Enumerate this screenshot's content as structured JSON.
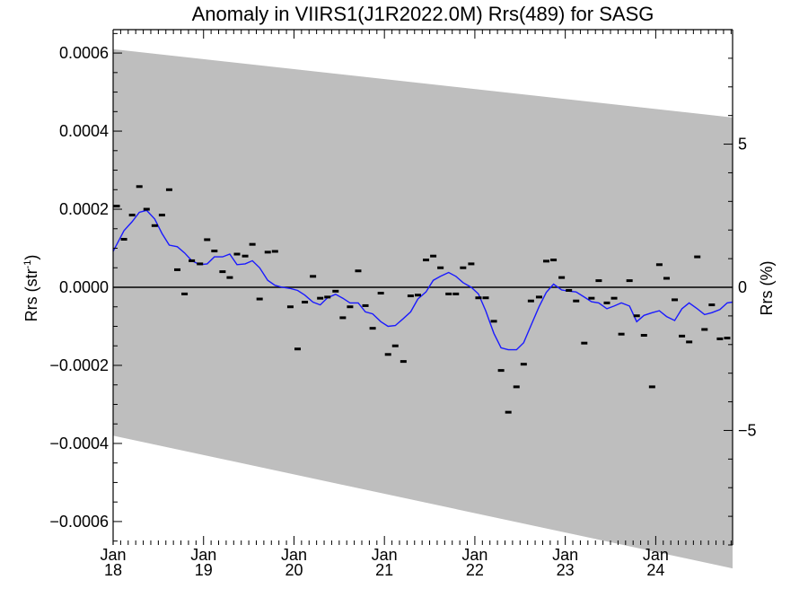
{
  "chart_data": {
    "type": "line",
    "title": "Anomaly in VIIRS1(J1R2022.0M) Rrs(489) for SASG",
    "ylabel_left_main": "Rrs (str",
    "ylabel_left_sup": "-1",
    "ylabel_left_close": ")",
    "ylabel_right": "Rrs (%)",
    "xlim": [
      2018.0,
      2024.85
    ],
    "ylim_left": [
      -0.00066,
      0.00066
    ],
    "ylim_right": [
      -9.0,
      9.0
    ],
    "x_ticks": [
      {
        "x": 2018.0,
        "month": "Jan",
        "year": "18"
      },
      {
        "x": 2019.0,
        "month": "Jan",
        "year": "19"
      },
      {
        "x": 2020.0,
        "month": "Jan",
        "year": "20"
      },
      {
        "x": 2021.0,
        "month": "Jan",
        "year": "21"
      },
      {
        "x": 2022.0,
        "month": "Jan",
        "year": "22"
      },
      {
        "x": 2023.0,
        "month": "Jan",
        "year": "23"
      },
      {
        "x": 2024.0,
        "month": "Jan",
        "year": "24"
      }
    ],
    "y_ticks_left": [
      {
        "v": 0.0006,
        "label": "0.0006"
      },
      {
        "v": 0.0004,
        "label": "0.0004"
      },
      {
        "v": 0.0002,
        "label": "0.0002"
      },
      {
        "v": 0.0,
        "label": "0.0000"
      },
      {
        "v": -0.0002,
        "label": "−0.0002"
      },
      {
        "v": -0.0004,
        "label": "−0.0004"
      },
      {
        "v": -0.0006,
        "label": "−0.0006"
      }
    ],
    "y_ticks_right": [
      {
        "v": 5,
        "label": "5"
      },
      {
        "v": 0,
        "label": "0"
      },
      {
        "v": -5,
        "label": "−5"
      }
    ],
    "uncertainty_band": {
      "x": [
        2018.0,
        2024.85
      ],
      "upper": [
        0.00061,
        0.000435
      ],
      "lower": [
        -0.00038,
        -0.00072
      ]
    },
    "points": {
      "x": [
        2018.04,
        2018.12,
        2018.21,
        2018.29,
        2018.37,
        2018.46,
        2018.54,
        2018.62,
        2018.71,
        2018.79,
        2018.87,
        2018.96,
        2019.04,
        2019.12,
        2019.21,
        2019.29,
        2019.37,
        2019.46,
        2019.54,
        2019.62,
        2019.71,
        2019.79,
        2019.96,
        2020.04,
        2020.12,
        2020.21,
        2020.29,
        2020.37,
        2020.46,
        2020.54,
        2020.62,
        2020.71,
        2020.79,
        2020.87,
        2020.96,
        2021.04,
        2021.12,
        2021.21,
        2021.29,
        2021.37,
        2021.46,
        2021.54,
        2021.62,
        2021.71,
        2021.79,
        2021.87,
        2021.96,
        2022.04,
        2022.12,
        2022.21,
        2022.29,
        2022.37,
        2022.46,
        2022.54,
        2022.62,
        2022.71,
        2022.79,
        2022.87,
        2022.96,
        2023.04,
        2023.12,
        2023.21,
        2023.29,
        2023.37,
        2023.46,
        2023.54,
        2023.62,
        2023.71,
        2023.79,
        2023.87,
        2023.96,
        2024.04,
        2024.12,
        2024.21,
        2024.29,
        2024.37,
        2024.46,
        2024.54,
        2024.62,
        2024.71,
        2024.79
      ],
      "y": [
        0.000208,
        0.000123,
        0.000185,
        0.000258,
        0.0002,
        0.000158,
        0.000185,
        0.00025,
        4.5e-05,
        -1.7e-05,
        6.8e-05,
        6e-05,
        0.000122,
        9.3e-05,
        4e-05,
        2.5e-05,
        8.5e-05,
        8e-05,
        0.00011,
        -3e-05,
        9e-05,
        9.2e-05,
        -5e-05,
        -0.000158,
        -3.8e-05,
        2.8e-05,
        -2.8e-05,
        -2.5e-05,
        -1e-05,
        -7.8e-05,
        -5e-05,
        4.2e-05,
        -4.7e-05,
        -0.000105,
        -1.5e-05,
        -0.000172,
        -0.00015,
        -0.00019,
        -2.2e-05,
        -2e-05,
        7e-05,
        8e-05,
        5e-05,
        -1.7e-05,
        -1.7e-05,
        5e-05,
        6e-05,
        -2.7e-05,
        -2.7e-05,
        -8.7e-05,
        -0.000213,
        -0.00032,
        -0.000255,
        -0.000197,
        -3.5e-05,
        -2.5e-05,
        6.7e-05,
        7e-05,
        2.5e-05,
        -8e-06,
        -3.5e-05,
        -0.000143,
        -2.8e-05,
        1.7e-05,
        -4e-05,
        -2.8e-05,
        -0.00012,
        1.7e-05,
        -7.3e-05,
        -0.000123,
        -0.000255,
        5.8e-05,
        2.3e-05,
        -3.2e-05,
        -0.000125,
        -0.00014,
        7.8e-05,
        -0.000108,
        -4.5e-05,
        -0.000132,
        -0.00013
      ]
    },
    "smoothed_line": {
      "x": [
        2018.0,
        2018.12,
        2018.21,
        2018.29,
        2018.37,
        2018.46,
        2018.54,
        2018.62,
        2018.71,
        2018.79,
        2018.87,
        2018.96,
        2019.04,
        2019.12,
        2019.21,
        2019.29,
        2019.37,
        2019.46,
        2019.54,
        2019.62,
        2019.71,
        2019.79,
        2019.87,
        2019.96,
        2020.04,
        2020.12,
        2020.21,
        2020.29,
        2020.37,
        2020.46,
        2020.54,
        2020.62,
        2020.71,
        2020.79,
        2020.87,
        2020.96,
        2021.04,
        2021.12,
        2021.21,
        2021.29,
        2021.37,
        2021.46,
        2021.54,
        2021.62,
        2021.71,
        2021.79,
        2021.87,
        2021.96,
        2022.04,
        2022.12,
        2022.21,
        2022.29,
        2022.37,
        2022.46,
        2022.54,
        2022.62,
        2022.71,
        2022.79,
        2022.87,
        2022.96,
        2023.04,
        2023.12,
        2023.21,
        2023.29,
        2023.37,
        2023.46,
        2023.54,
        2023.62,
        2023.71,
        2023.79,
        2023.87,
        2023.96,
        2024.04,
        2024.12,
        2024.21,
        2024.29,
        2024.37,
        2024.46,
        2024.54,
        2024.62,
        2024.71,
        2024.79,
        2024.85
      ],
      "y": [
        9.2e-05,
        0.000145,
        0.000168,
        0.000192,
        0.000197,
        0.000175,
        0.000138,
        0.000108,
        0.000104,
        8.8e-05,
        6.8e-05,
        5.8e-05,
        6e-05,
        7.8e-05,
        7.8e-05,
        8.5e-05,
        5.8e-05,
        6e-05,
        6.8e-05,
        5e-05,
        1.8e-05,
        5e-06,
        0.0,
        -3e-06,
        -8e-06,
        -2e-05,
        -3.8e-05,
        -4.5e-05,
        -2.7e-05,
        -1.8e-05,
        -2.8e-05,
        -4e-05,
        -4e-05,
        -6.3e-05,
        -6.8e-05,
        -8.8e-05,
        -0.0001,
        -9.8e-05,
        -8e-05,
        -6.3e-05,
        -3e-05,
        -1.2e-05,
        1.8e-05,
        2.8e-05,
        3.8e-05,
        2.8e-05,
        1.2e-05,
        0.0,
        -1.7e-05,
        -6e-05,
        -0.000118,
        -0.000155,
        -0.00016,
        -0.00016,
        -0.000142,
        -9.8e-05,
        -5e-05,
        -1.3e-05,
        8e-06,
        -7e-06,
        -1e-05,
        -1.2e-05,
        -2.5e-05,
        -3.7e-05,
        -4e-05,
        -5.5e-05,
        -4.8e-05,
        -4e-05,
        -4.8e-05,
        -8.8e-05,
        -7.2e-05,
        -6.5e-05,
        -6e-05,
        -7.5e-05,
        -8.5e-05,
        -5.5e-05,
        -4e-05,
        -5.5e-05,
        -7e-05,
        -6.5e-05,
        -5.7e-05,
        -4e-05,
        -3.8e-05
      ]
    },
    "grid": false,
    "legend": "none",
    "colors": {
      "band": "#bebebe",
      "line": "#1a1aff",
      "points": "#000000",
      "zero_line": "#000000"
    }
  }
}
